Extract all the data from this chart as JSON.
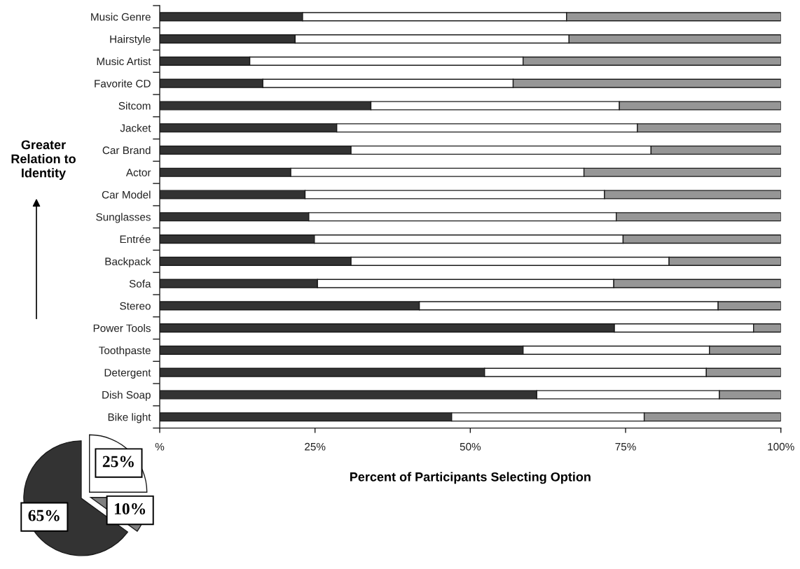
{
  "chart_data": [
    {
      "type": "bar",
      "orientation": "horizontal",
      "stacked": true,
      "categories": [
        "Music Genre",
        "Hairstyle",
        "Music Artist",
        "Favorite CD",
        "Sitcom",
        "Jacket",
        "Car Brand",
        "Actor",
        "Car Model",
        "Sunglasses",
        "Entrée",
        "Backpack",
        "Sofa",
        "Stereo",
        "Power Tools",
        "Toothpaste",
        "Detergent",
        "Dish Soap",
        "Bike light"
      ],
      "series": [
        {
          "color": "#333333",
          "values": [
            23.0,
            21.8,
            14.5,
            16.6,
            34.0,
            28.5,
            30.8,
            21.1,
            23.4,
            24.0,
            24.9,
            30.8,
            25.4,
            41.8,
            73.2,
            58.5,
            52.3,
            60.7,
            47.0
          ]
        },
        {
          "color": "#ffffff",
          "values": [
            42.5,
            44.1,
            44.0,
            40.3,
            40.0,
            48.4,
            48.3,
            47.2,
            48.2,
            49.5,
            49.7,
            51.2,
            47.7,
            48.1,
            22.4,
            30.0,
            35.7,
            29.4,
            31.0
          ]
        },
        {
          "color": "#969696",
          "values": [
            34.5,
            34.1,
            41.5,
            43.1,
            26.0,
            23.1,
            20.9,
            31.7,
            28.4,
            26.5,
            25.4,
            18.0,
            26.9,
            10.1,
            4.4,
            11.5,
            12.0,
            9.9,
            22.0
          ]
        }
      ],
      "xlim": [
        0,
        100
      ],
      "xticks": [
        {
          "value": 0,
          "label": "%"
        },
        {
          "value": 25,
          "label": "25%"
        },
        {
          "value": 50,
          "label": "50%"
        },
        {
          "value": 75,
          "label": "75%"
        },
        {
          "value": 100,
          "label": "100%"
        }
      ],
      "xlabel": "Percent of Participants Selecting Option",
      "annotations": [
        "Greater Relation to Identity"
      ]
    },
    {
      "type": "pie",
      "categories": [
        null,
        null,
        null
      ],
      "values": [
        25,
        10,
        65
      ],
      "colors": [
        "#ffffff",
        "#808080",
        "#333333"
      ],
      "value_labels": [
        "25%",
        "10%",
        "65%"
      ]
    }
  ]
}
